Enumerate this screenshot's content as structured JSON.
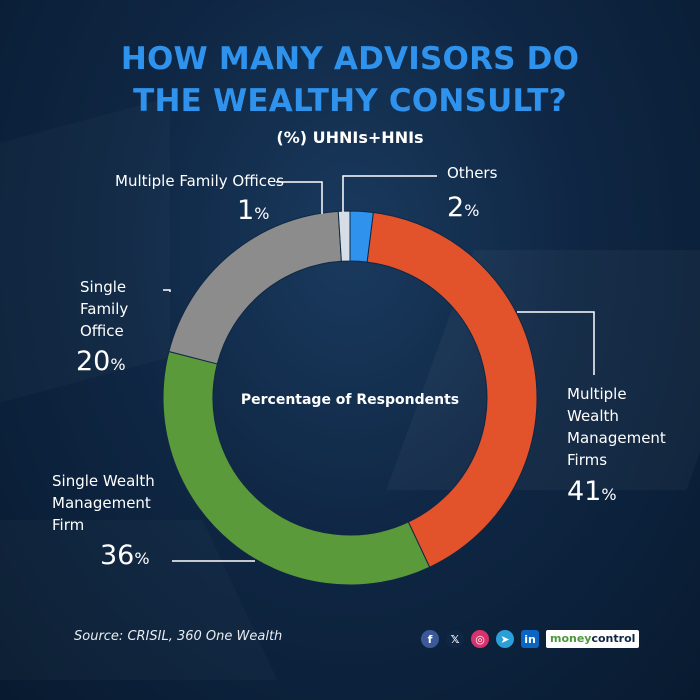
{
  "header": {
    "title_line1": "HOW MANY ADVISORS DO",
    "title_line2": "THE WEALTHY CONSULT?",
    "subtitle": "(%) UHNIs+HNIs"
  },
  "chart_data": {
    "type": "pie",
    "variant": "donut",
    "center_label": "Percentage of Respondents",
    "slices": [
      {
        "name": "Others",
        "value": 2,
        "label_lines": [
          "Others"
        ],
        "color": "#2f93ee"
      },
      {
        "name": "Multiple Wealth Management Firms",
        "value": 41,
        "label_lines": [
          "Multiple",
          "Wealth",
          "Management",
          "Firms"
        ],
        "color": "#e2522b"
      },
      {
        "name": "Single Wealth Management Firm",
        "value": 36,
        "label_lines": [
          "Single Wealth",
          "Management",
          "Firm"
        ],
        "color": "#5a9a3a"
      },
      {
        "name": "Single Family Office",
        "value": 20,
        "label_lines": [
          "Single",
          "Family",
          "Office"
        ],
        "color": "#8c8c8c"
      },
      {
        "name": "Multiple Family Offices",
        "value": 1,
        "label_lines": [
          "Multiple Family Offices"
        ],
        "color": "#d6dde6"
      }
    ],
    "percent_suffix": "%"
  },
  "footer": {
    "source": "Source: CRISIL, 360 One Wealth",
    "social_icons": [
      {
        "icon": "facebook-icon",
        "glyph": "f",
        "color": "#3b5998"
      },
      {
        "icon": "x-icon",
        "glyph": "𝕏",
        "color": "#0f2744"
      },
      {
        "icon": "instagram-icon",
        "glyph": "◎",
        "color": "#d6336c"
      },
      {
        "icon": "telegram-icon",
        "glyph": "➤",
        "color": "#2a9fd8"
      },
      {
        "icon": "linkedin-icon",
        "glyph": "in",
        "color": "#0a66c2"
      }
    ],
    "brand_part1": "money",
    "brand_part2": "control"
  }
}
